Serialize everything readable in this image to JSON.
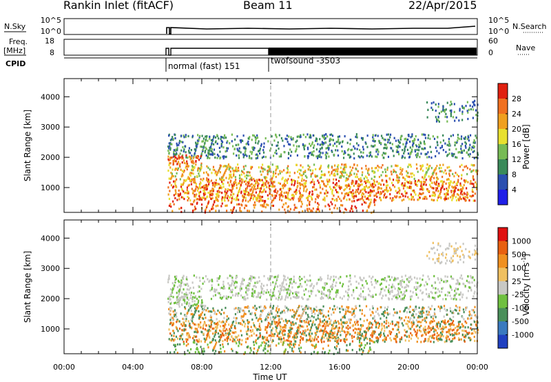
{
  "header": {
    "station": "Rankin Inlet (fitACF)",
    "beam": "Beam 11",
    "date": "22/Apr/2015"
  },
  "strips": {
    "nsky_label": "N.Sky",
    "nsky_ticks": [
      "10^5",
      "10^0"
    ],
    "nsearch_label": "N.Search",
    "nsearch_ticks": [
      "10^5",
      "10^0"
    ],
    "freq_label": "Freq.",
    "freq_unit": "[MHz]",
    "freq_ticks": [
      "18",
      "8"
    ],
    "nave_label": "Nave",
    "nave_ticks": [
      "60",
      "0"
    ],
    "cpid_label": "CPID",
    "cpid_segments": [
      "normal (fast) 151",
      "twofsound -3503"
    ]
  },
  "chart_data": [
    {
      "type": "heatmap",
      "panel": "power",
      "ylabel": "Slant Range [km]",
      "ylim": [
        180,
        4600
      ],
      "yticks": [
        1000,
        2000,
        3000,
        4000
      ],
      "xlim": [
        0,
        24
      ],
      "colorbar_label": "Power [dB]",
      "colorbar_ticks": [
        "28",
        "24",
        "20",
        "16",
        "12",
        "8",
        "4"
      ],
      "colors": [
        "#1f1fe8",
        "#2b4fb0",
        "#3a8a5a",
        "#77bb55",
        "#e8e030",
        "#f0a020",
        "#f07020",
        "#e02010"
      ],
      "vertical_marker_hours": [
        12
      ]
    },
    {
      "type": "heatmap",
      "panel": "velocity",
      "ylabel": "Slant Range [km]",
      "ylim": [
        180,
        4600
      ],
      "yticks": [
        1000,
        2000,
        3000,
        4000
      ],
      "xlim": [
        0,
        24
      ],
      "xlabel": "Time UT",
      "xticks": [
        "00:00",
        "04:00",
        "08:00",
        "12:00",
        "16:00",
        "20:00",
        "00:00"
      ],
      "colorbar_label": "Velocity [m s",
      "colorbar_label_sup": "-1",
      "colorbar_label_end": "]",
      "colorbar_ticks": [
        "1000",
        "500",
        "100",
        "25",
        "-25",
        "-100",
        "-500",
        "-1000"
      ],
      "colors": [
        "#2040c0",
        "#3a7abf",
        "#4a8f5a",
        "#6fc040",
        "#c8c8c4",
        "#f0c060",
        "#f09020",
        "#e86010",
        "#e01010"
      ],
      "vertical_marker_hours": [
        12
      ]
    }
  ]
}
